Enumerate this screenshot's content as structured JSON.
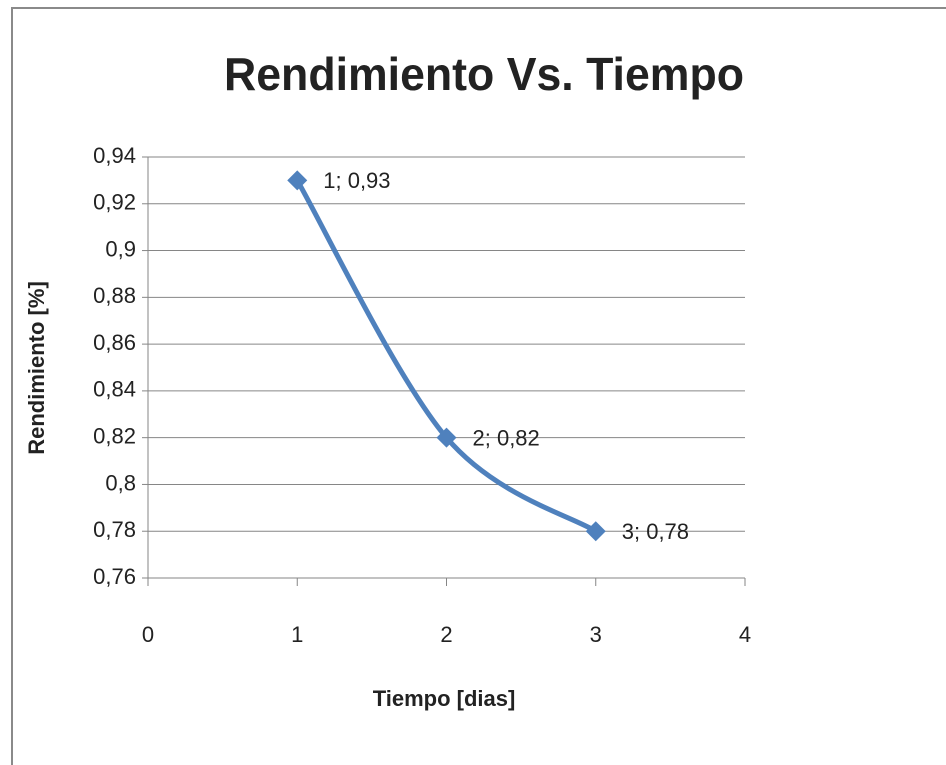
{
  "chart_data": {
    "type": "line",
    "title": "Rendimiento Vs. Tiempo",
    "x_label": "Tiempo [dias]",
    "y_label": "Rendimiento [%]",
    "x": [
      1,
      2,
      3
    ],
    "values": [
      0.93,
      0.82,
      0.78
    ],
    "value_labels": [
      "1; 0,93",
      "2; 0,82",
      "3; 0,78"
    ],
    "color": "#4f81bd",
    "smooth": true,
    "grid": true,
    "xlim": [
      0,
      4
    ],
    "xticks": [
      0,
      1,
      2,
      3,
      4
    ],
    "ylim": [
      0.76,
      0.94
    ],
    "yticks": [
      {
        "value": 0.76,
        "label": "0,76"
      },
      {
        "value": 0.78,
        "label": "0,78"
      },
      {
        "value": 0.8,
        "label": "0,8"
      },
      {
        "value": 0.82,
        "label": "0,82"
      },
      {
        "value": 0.84,
        "label": "0,84"
      },
      {
        "value": 0.86,
        "label": "0,86"
      },
      {
        "value": 0.88,
        "label": "0,88"
      },
      {
        "value": 0.9,
        "label": "0,9"
      },
      {
        "value": 0.92,
        "label": "0,92"
      },
      {
        "value": 0.94,
        "label": "0,94"
      }
    ]
  }
}
